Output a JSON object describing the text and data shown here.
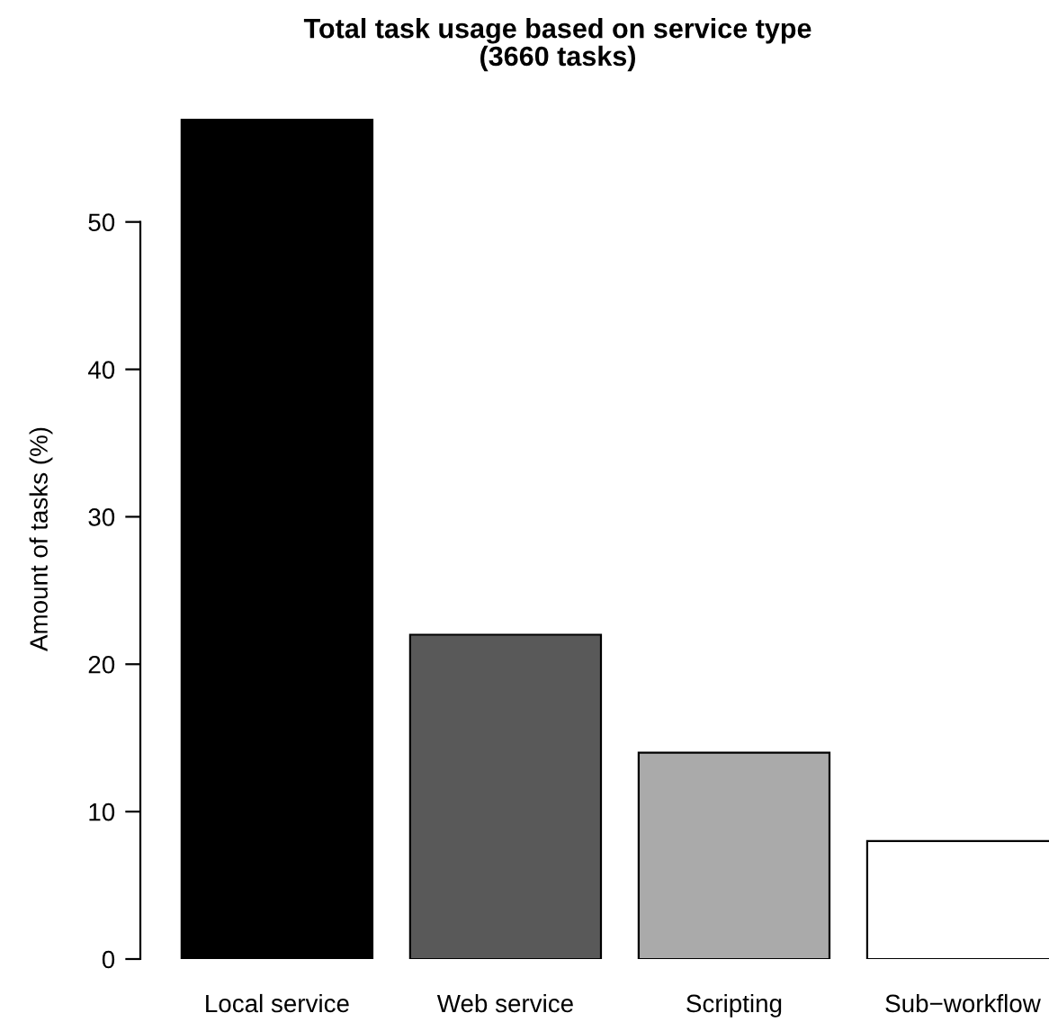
{
  "chart_data": {
    "type": "bar",
    "title": "Total task usage based on service type\n(3660 tasks)",
    "ylabel": "Amount of tasks (%)",
    "categories": [
      "Local service",
      "Web service",
      "Scripting",
      "Sub−workflow"
    ],
    "values": [
      57,
      22,
      14,
      8
    ],
    "colors": [
      "#000000",
      "#595959",
      "#aaaaaa",
      "#ffffff"
    ],
    "ylim": [
      0,
      57
    ],
    "yticks": [
      0,
      10,
      20,
      30,
      40,
      50
    ],
    "grid": false,
    "legend": false
  }
}
